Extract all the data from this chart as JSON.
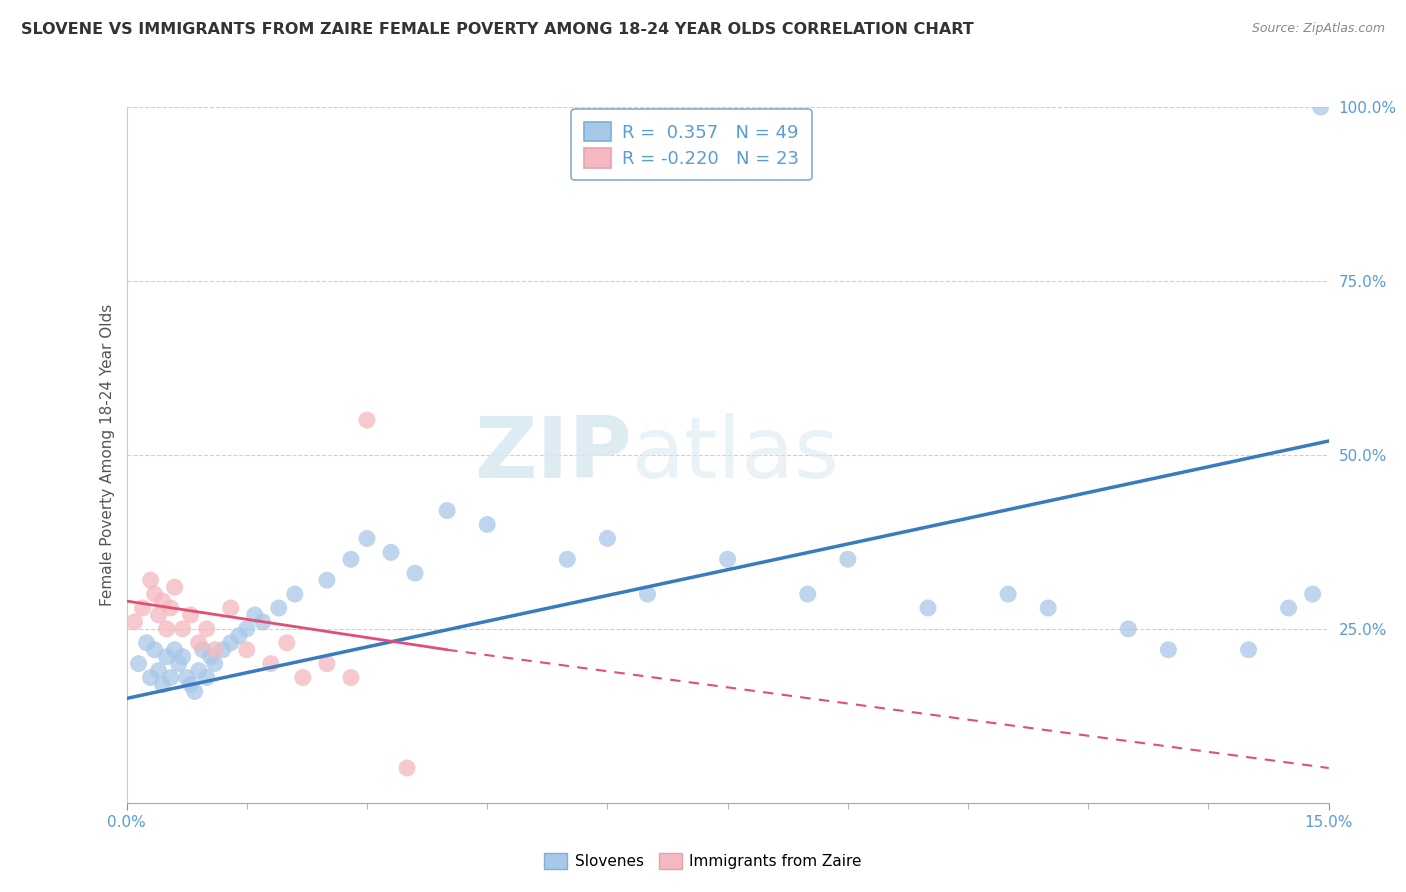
{
  "title": "SLOVENE VS IMMIGRANTS FROM ZAIRE FEMALE POVERTY AMONG 18-24 YEAR OLDS CORRELATION CHART",
  "source": "Source: ZipAtlas.com",
  "ylabel": "Female Poverty Among 18-24 Year Olds",
  "xlim": [
    0.0,
    15.0
  ],
  "ylim": [
    0.0,
    100.0
  ],
  "legend_blue_r": "0.357",
  "legend_blue_n": "49",
  "legend_pink_r": "-0.220",
  "legend_pink_n": "23",
  "blue_color": "#a8c8e8",
  "pink_color": "#f4b8c0",
  "blue_line_color": "#3a7abf",
  "pink_line_color": "#e05070",
  "blue_scatter_x": [
    0.15,
    0.25,
    0.3,
    0.35,
    0.4,
    0.45,
    0.5,
    0.55,
    0.6,
    0.65,
    0.7,
    0.75,
    0.8,
    0.85,
    0.9,
    0.95,
    1.0,
    1.05,
    1.1,
    1.2,
    1.3,
    1.4,
    1.5,
    1.6,
    1.7,
    1.9,
    2.1,
    2.5,
    2.8,
    3.0,
    3.3,
    3.6,
    4.0,
    4.5,
    5.5,
    6.0,
    6.5,
    7.5,
    8.5,
    9.0,
    10.0,
    11.0,
    11.5,
    12.5,
    13.0,
    14.0,
    14.5,
    14.8,
    14.9
  ],
  "blue_scatter_y": [
    20,
    23,
    18,
    22,
    19,
    17,
    21,
    18,
    22,
    20,
    21,
    18,
    17,
    16,
    19,
    22,
    18,
    21,
    20,
    22,
    23,
    24,
    25,
    27,
    26,
    28,
    30,
    32,
    35,
    38,
    36,
    33,
    42,
    40,
    35,
    38,
    30,
    35,
    30,
    35,
    28,
    30,
    28,
    25,
    22,
    22,
    28,
    30,
    100
  ],
  "pink_scatter_x": [
    0.1,
    0.2,
    0.3,
    0.35,
    0.4,
    0.45,
    0.5,
    0.55,
    0.6,
    0.7,
    0.8,
    0.9,
    1.0,
    1.1,
    1.3,
    1.5,
    1.8,
    2.0,
    2.2,
    2.5,
    2.8,
    3.0,
    3.5
  ],
  "pink_scatter_y": [
    26,
    28,
    32,
    30,
    27,
    29,
    25,
    28,
    31,
    25,
    27,
    23,
    25,
    22,
    28,
    22,
    20,
    23,
    18,
    20,
    18,
    55,
    5
  ],
  "blue_line_x0": 0.0,
  "blue_line_y0": 15.0,
  "blue_line_x1": 15.0,
  "blue_line_y1": 52.0,
  "pink_line_solid_x0": 0.0,
  "pink_line_solid_y0": 29.0,
  "pink_line_solid_x1": 4.0,
  "pink_line_solid_y1": 22.0,
  "pink_line_dash_x0": 4.0,
  "pink_line_dash_y0": 22.0,
  "pink_line_dash_x1": 15.0,
  "pink_line_dash_y1": 5.0,
  "watermark_zip": "ZIP",
  "watermark_atlas": "atlas",
  "background_color": "#ffffff",
  "grid_color": "#d0d0d0",
  "tick_color": "#5b9bd5",
  "label_color": "#555555"
}
